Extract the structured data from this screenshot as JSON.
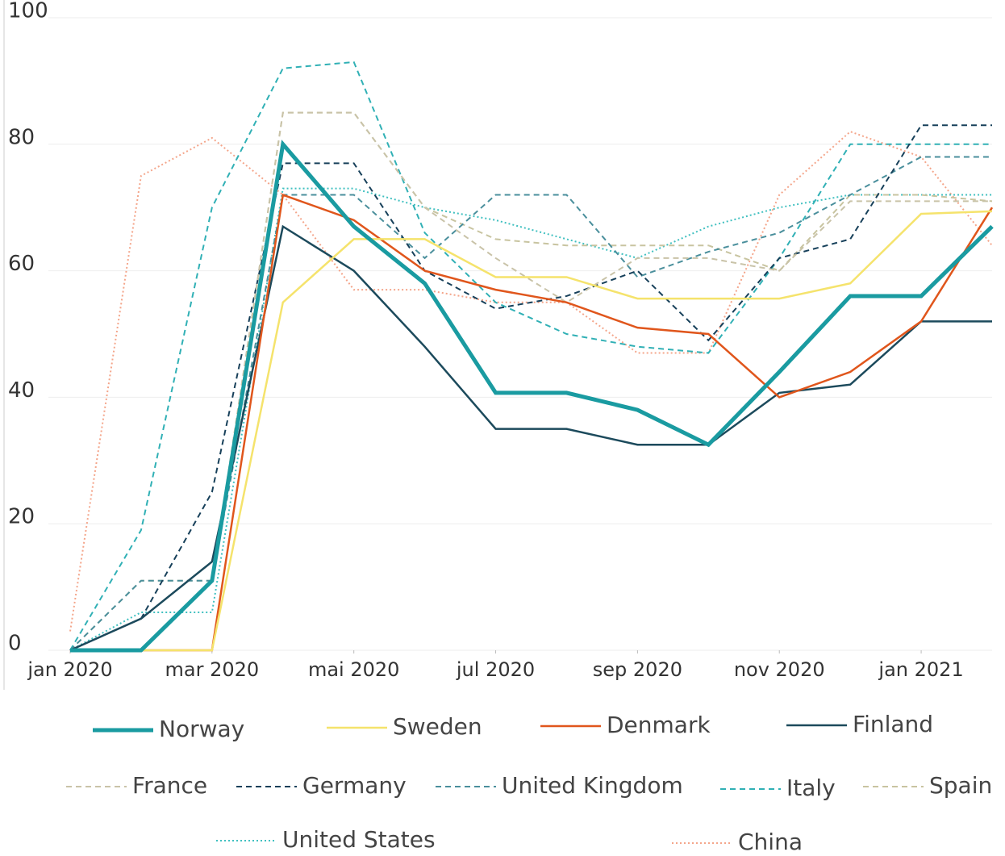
{
  "chart_data": {
    "type": "line",
    "x": [
      "2020-01",
      "2020-02",
      "2020-03",
      "2020-04",
      "2020-05",
      "2020-06",
      "2020-07",
      "2020-08",
      "2020-09",
      "2020-10",
      "2020-11",
      "2020-12",
      "2021-01",
      "2021-02"
    ],
    "xlim": [
      "2020-01",
      "2021-02"
    ],
    "xticks": [
      {
        "value": "2020-01",
        "label": "jan 2020"
      },
      {
        "value": "2020-03",
        "label": "mar 2020"
      },
      {
        "value": "2020-05",
        "label": "mai 2020"
      },
      {
        "value": "2020-07",
        "label": "jul 2020"
      },
      {
        "value": "2020-09",
        "label": "sep 2020"
      },
      {
        "value": "2020-11",
        "label": "nov 2020"
      },
      {
        "value": "2021-01",
        "label": "jan 2021"
      }
    ],
    "ylim": [
      0,
      100
    ],
    "yticks": [
      0,
      20,
      40,
      60,
      80,
      100
    ],
    "grid": true,
    "legend": "bottom",
    "series": [
      {
        "name": "Norway",
        "color": "#1a9ba1",
        "line_style": "thick",
        "values": [
          0,
          0,
          11,
          80,
          67,
          58,
          40.7,
          40.7,
          38,
          32.5,
          44,
          56,
          56,
          67
        ]
      },
      {
        "name": "Sweden",
        "color": "#f5e36c",
        "line_style": "solid",
        "values": [
          0,
          0,
          0,
          55,
          65,
          65,
          59,
          59,
          55.6,
          55.6,
          55.6,
          58,
          69,
          69.4
        ]
      },
      {
        "name": "Denmark",
        "color": "#e0561c",
        "line_style": "solid",
        "values": [
          0,
          0,
          0,
          72,
          68,
          60,
          57,
          55,
          51,
          50,
          40,
          44,
          52,
          70
        ]
      },
      {
        "name": "Finland",
        "color": "#1c4a5c",
        "line_style": "solid",
        "values": [
          0,
          5,
          14,
          67,
          60,
          48,
          35,
          35,
          32.5,
          32.5,
          40.7,
          42,
          52,
          52
        ]
      },
      {
        "name": "France",
        "color": "#c9c3a8",
        "line_style": "dashed",
        "values": [
          0,
          0,
          11,
          85,
          85,
          70,
          62,
          55,
          62,
          62,
          60,
          71,
          71,
          71
        ]
      },
      {
        "name": "Germany",
        "color": "#17405a",
        "line_style": "dashed",
        "values": [
          0,
          5,
          25,
          77,
          77,
          60,
          54,
          56,
          60,
          49,
          62,
          65,
          83,
          83
        ]
      },
      {
        "name": "United Kingdom",
        "color": "#4a8f9c",
        "line_style": "dashed",
        "values": [
          0,
          11,
          11,
          72,
          72,
          62,
          72,
          72,
          59,
          63,
          66,
          72,
          78,
          78
        ]
      },
      {
        "name": "Italy",
        "color": "#30b0b5",
        "line_style": "dashed",
        "values": [
          0,
          19,
          70,
          92,
          93,
          66,
          55,
          50,
          48,
          47,
          62,
          80,
          80,
          80
        ]
      },
      {
        "name": "Spain",
        "color": "#c8c4a0",
        "line_style": "dashed",
        "values": [
          0,
          11,
          11,
          85,
          85,
          70,
          65,
          64,
          64,
          64,
          60,
          72,
          72,
          71
        ]
      },
      {
        "name": "United States",
        "color": "#40c0c0",
        "line_style": "dotted",
        "values": [
          0,
          6,
          6,
          73,
          73,
          70,
          68,
          65,
          62,
          67,
          70,
          72,
          72,
          72
        ]
      },
      {
        "name": "China",
        "color": "#f4a58a",
        "line_style": "dotted",
        "values": [
          3,
          75,
          81,
          72,
          57,
          57,
          55,
          55,
          47,
          47,
          72,
          82,
          78,
          64
        ]
      }
    ]
  }
}
